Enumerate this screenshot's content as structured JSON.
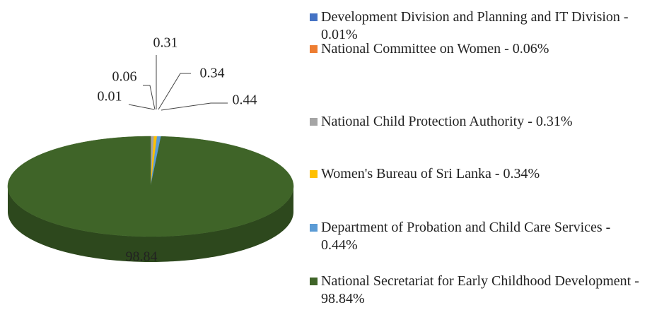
{
  "chart_data": {
    "type": "pie",
    "categories": [
      "Development Division and Planning and IT Division - 0.01%",
      "National Committee on Women - 0.06%",
      "National Child Protection Authority - 0.31%",
      "Women's Bureau of Sri Lanka - 0.34%",
      " Department of Probation and Child Care Services - 0.44%",
      "National Secretariat for Early Childhood Development - 98.84%"
    ],
    "values": [
      0.01,
      0.06,
      0.31,
      0.34,
      0.44,
      98.84
    ],
    "colors": [
      "#4472c4",
      "#ed7d31",
      "#a5a5a5",
      "#ffc000",
      "#5b9bd5",
      "#3f6428"
    ],
    "legend": "right"
  }
}
